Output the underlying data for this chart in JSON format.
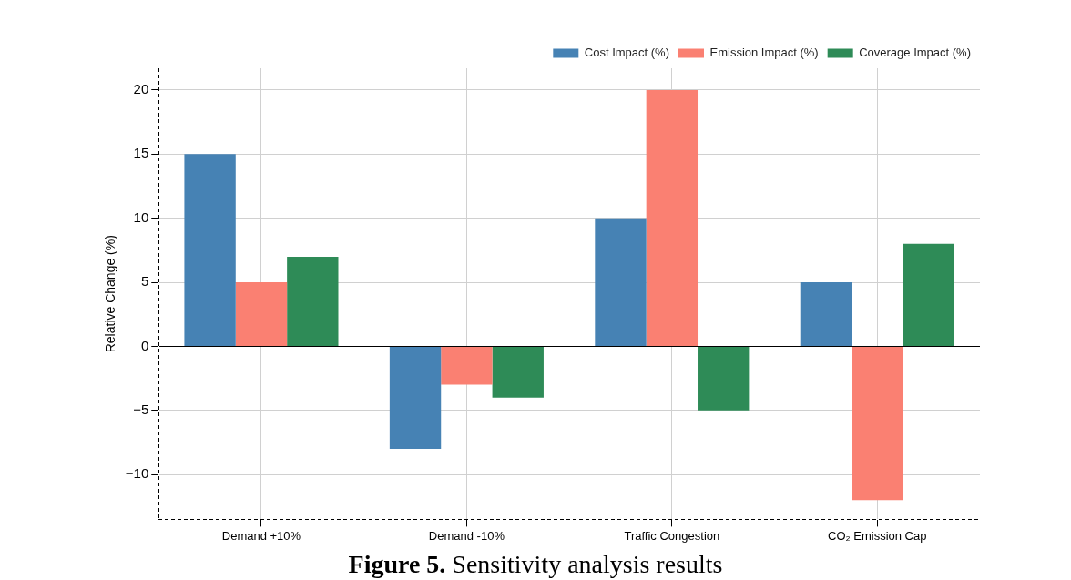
{
  "chart_data": {
    "type": "bar",
    "ylabel": "Relative Change (%)",
    "categories": [
      "Demand +10%",
      "Demand -10%",
      "Traffic Congestion",
      "CO₂ Emission Cap"
    ],
    "series": [
      {
        "name": "Cost Impact (%)",
        "color": "#4682b4",
        "values": [
          15,
          -8,
          10,
          5
        ]
      },
      {
        "name": "Emission Impact (%)",
        "color": "#fa8072",
        "values": [
          5,
          -3,
          20,
          -12
        ]
      },
      {
        "name": "Coverage Impact (%)",
        "color": "#2e8b57",
        "values": [
          7,
          -4,
          -5,
          8
        ]
      }
    ],
    "ylim": [
      -13.5,
      21.7
    ],
    "yticks": [
      -10,
      -5,
      0,
      5,
      10,
      15,
      20
    ],
    "grid": true,
    "legend": "top right",
    "annotations": [
      "Figure 5. Sensitivity analysis results"
    ]
  }
}
